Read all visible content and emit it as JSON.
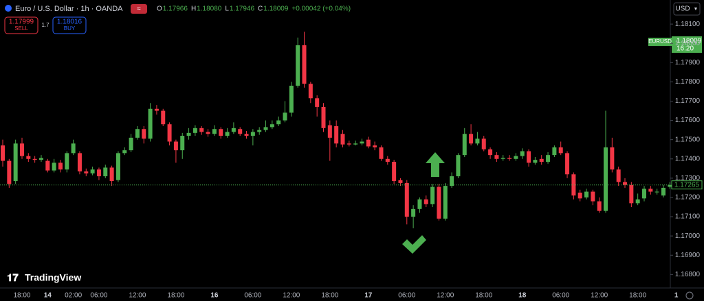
{
  "header": {
    "title": "Euro / U.S. Dollar · 1h · OANDA",
    "ohlc": [
      {
        "label": "O",
        "value": "1.17966"
      },
      {
        "label": "H",
        "value": "1.18080"
      },
      {
        "label": "L",
        "value": "1.17946"
      },
      {
        "label": "C",
        "value": "1.18009"
      }
    ],
    "change": "+0.00042 (+0.04%)"
  },
  "sell": {
    "price": "1.17999",
    "label": "SELL"
  },
  "spread": "1.7",
  "buy": {
    "price": "1.18016",
    "label": "BUY"
  },
  "currency": "USD",
  "price_tag": {
    "symbol": "EURUSD",
    "price": "1.18009",
    "countdown": "16:20"
  },
  "logo": "TradingView",
  "chart_data": {
    "type": "candlestick",
    "categories": [
      null,
      null,
      null,
      "18:00",
      null,
      null,
      null,
      "14",
      null,
      null,
      null,
      "02:00",
      null,
      null,
      null,
      "06:00",
      null,
      null,
      null,
      null,
      null,
      "12:00",
      null,
      null,
      null,
      null,
      null,
      "18:00",
      null,
      null,
      null,
      null,
      null,
      "16",
      null,
      null,
      null,
      null,
      null,
      "06:00",
      null,
      null,
      null,
      null,
      null,
      "12:00",
      null,
      null,
      null,
      null,
      null,
      "18:00",
      null,
      null,
      null,
      null,
      null,
      "17",
      null,
      null,
      null,
      null,
      null,
      "06:00",
      null,
      null,
      null,
      null,
      null,
      "12:00",
      null,
      null,
      null,
      null,
      null,
      "18:00",
      null,
      null,
      null,
      null,
      null,
      "18",
      null,
      null,
      null,
      null,
      null,
      "06:00",
      null,
      null,
      null,
      null,
      null,
      "12:00",
      null,
      null,
      null,
      null,
      null,
      "18:00",
      null,
      null,
      null,
      null,
      null,
      "1"
    ],
    "open": [
      1.1747,
      1.1739,
      1.17285,
      1.1748,
      1.17415,
      1.174,
      1.17395,
      1.1739,
      1.1734,
      1.1738,
      1.17345,
      1.1743,
      1.1743,
      1.17335,
      1.17325,
      1.17345,
      1.1731,
      1.17355,
      1.1729,
      1.1743,
      1.17445,
      1.1751,
      1.17555,
      1.17505,
      1.1766,
      1.1765,
      1.1758,
      1.1749,
      1.17445,
      1.1752,
      1.17535,
      1.1756,
      1.1754,
      1.1753,
      1.17555,
      1.1752,
      1.1754,
      1.17555,
      1.1753,
      1.1752,
      1.1754,
      1.1755,
      1.17565,
      1.1758,
      1.176,
      1.1764,
      1.1778,
      1.1799,
      1.1779,
      1.17715,
      1.1767,
      1.17575,
      1.1757,
      1.1753,
      1.1748,
      1.17475,
      1.1748,
      1.175,
      1.1747,
      1.1746,
      1.174,
      1.17385,
      1.1729,
      1.17275,
      1.171,
      1.1714,
      1.1719,
      1.17165,
      1.17255,
      1.1709,
      1.1726,
      1.1731,
      1.1742,
      1.1753,
      1.1748,
      1.17505,
      1.1745,
      1.1742,
      1.174,
      1.17405,
      1.174,
      1.17415,
      1.1744,
      1.1738,
      1.174,
      1.17385,
      1.1742,
      1.1746,
      1.1743,
      1.1732,
      1.17225,
      1.172,
      1.1723,
      1.1718,
      1.1713,
      1.1746,
      1.17345,
      1.1728,
      1.17265,
      1.1717,
      1.17195,
      1.17245,
      1.1723,
      1.1721,
      1.17255,
      null
    ],
    "high": [
      1.175,
      1.174,
      1.175,
      1.1751,
      1.1743,
      1.17415,
      1.1742,
      1.174,
      1.174,
      1.17395,
      1.1744,
      1.175,
      1.1744,
      1.1735,
      1.1736,
      1.17355,
      1.1737,
      1.17365,
      1.1744,
      1.1746,
      1.1753,
      1.1757,
      1.1757,
      1.1769,
      1.1768,
      1.1766,
      1.1759,
      1.175,
      1.17535,
      1.1756,
      1.17575,
      1.1757,
      1.17555,
      1.17575,
      1.17565,
      1.1756,
      1.1759,
      1.17565,
      1.17545,
      1.17555,
      1.17565,
      1.176,
      1.176,
      1.1762,
      1.177,
      1.178,
      1.1803,
      1.1806,
      1.178,
      1.1773,
      1.1769,
      1.176,
      1.176,
      1.1755,
      1.17495,
      1.17495,
      1.17505,
      1.17515,
      1.1749,
      1.1747,
      1.17415,
      1.17395,
      1.173,
      1.1729,
      1.1716,
      1.172,
      1.1721,
      1.1727,
      1.1727,
      1.17275,
      1.1733,
      1.1743,
      1.1756,
      1.1758,
      1.1754,
      1.1752,
      1.1746,
      1.17435,
      1.1742,
      1.1742,
      1.1743,
      1.17455,
      1.1745,
      1.1741,
      1.1742,
      1.17435,
      1.1747,
      1.1749,
      1.1744,
      1.1733,
      1.1724,
      1.17245,
      1.1724,
      1.172,
      1.1765,
      1.1751,
      1.1736,
      1.173,
      1.1728,
      1.1722,
      1.1726,
      1.1726,
      1.17245,
      1.17265,
      1.1728,
      null
    ],
    "low": [
      1.1736,
      1.1725,
      1.1727,
      1.174,
      1.17385,
      1.1738,
      1.17385,
      1.1733,
      1.1733,
      1.1733,
      1.1733,
      1.1742,
      1.1732,
      1.1731,
      1.17315,
      1.1729,
      1.173,
      1.1726,
      1.1728,
      1.1742,
      1.17435,
      1.175,
      1.1748,
      1.1749,
      1.1763,
      1.1757,
      1.1747,
      1.1738,
      1.174,
      1.175,
      1.1752,
      1.17525,
      1.17515,
      1.1752,
      1.17505,
      1.1751,
      1.1753,
      1.1752,
      1.17505,
      1.1747,
      1.17525,
      1.1754,
      1.17555,
      1.1757,
      1.1759,
      1.1762,
      1.1777,
      1.1777,
      1.1769,
      1.1762,
      1.1754,
      1.1739,
      1.1746,
      1.1746,
      1.17465,
      1.1747,
      1.1747,
      1.17455,
      1.17445,
      1.1739,
      1.1737,
      1.1727,
      1.1726,
      1.1706,
      1.1704,
      1.1712,
      1.1715,
      1.1715,
      1.1708,
      1.1708,
      1.1725,
      1.173,
      1.1741,
      1.1747,
      1.1747,
      1.1744,
      1.174,
      1.17385,
      1.1739,
      1.1739,
      1.1739,
      1.174,
      1.1736,
      1.1737,
      1.1737,
      1.17375,
      1.1741,
      1.1742,
      1.173,
      1.1719,
      1.1718,
      1.1719,
      1.1716,
      1.1712,
      1.1712,
      1.1733,
      1.1726,
      1.1725,
      1.1715,
      1.1716,
      1.1718,
      1.17215,
      1.17215,
      1.172,
      1.17245,
      null
    ],
    "close": [
      1.1739,
      1.1727,
      1.1748,
      1.17415,
      1.174,
      1.17395,
      1.17405,
      1.1734,
      1.1738,
      1.17345,
      1.1743,
      1.1748,
      1.17335,
      1.17325,
      1.17345,
      1.1731,
      1.17355,
      1.17285,
      1.1743,
      1.17445,
      1.1751,
      1.17555,
      1.17505,
      1.1766,
      1.1765,
      1.1758,
      1.1749,
      1.17445,
      1.1752,
      1.17535,
      1.1756,
      1.1754,
      1.1753,
      1.17555,
      1.1752,
      1.1754,
      1.1756,
      1.1753,
      1.1752,
      1.1754,
      1.1755,
      1.17565,
      1.1758,
      1.176,
      1.1764,
      1.1778,
      1.1799,
      1.1779,
      1.17715,
      1.1767,
      1.1756,
      1.1751,
      1.1748,
      1.17475,
      1.17475,
      1.1748,
      1.1749,
      1.17465,
      1.1746,
      1.174,
      1.17385,
      1.17285,
      1.17275,
      1.171,
      1.1714,
      1.1719,
      1.17165,
      1.17255,
      1.1709,
      1.1726,
      1.1731,
      1.1742,
      1.1753,
      1.1748,
      1.17505,
      1.1745,
      1.1742,
      1.174,
      1.17405,
      1.174,
      1.17415,
      1.1744,
      1.1738,
      1.17395,
      1.17385,
      1.1742,
      1.1746,
      1.1743,
      1.1732,
      1.1721,
      1.17195,
      1.1723,
      1.1718,
      1.1713,
      1.1746,
      1.17345,
      1.1728,
      1.17265,
      1.1717,
      1.1719,
      1.17245,
      1.1723,
      1.1723,
      1.1725,
      1.17265,
      null
    ],
    "up_color": "#4caf50",
    "down_color": "#f23645",
    "ylim": [
      1.1673,
      1.18225
    ],
    "yticks": [
      {
        "value": 1.181,
        "label": "1.18100"
      },
      {
        "value": 1.18,
        "label": "1.18000"
      },
      {
        "value": 1.179,
        "label": "1.17900"
      },
      {
        "value": 1.178,
        "label": "1.17800"
      },
      {
        "value": 1.177,
        "label": "1.17700"
      },
      {
        "value": 1.176,
        "label": "1.17600"
      },
      {
        "value": 1.175,
        "label": "1.17500"
      },
      {
        "value": 1.174,
        "label": "1.17400"
      },
      {
        "value": 1.173,
        "label": "1.17300"
      },
      {
        "value": 1.172,
        "label": "1.17200"
      },
      {
        "value": 1.171,
        "label": "1.17100"
      },
      {
        "value": 1.17,
        "label": "1.17000"
      },
      {
        "value": 1.169,
        "label": "1.16900"
      },
      {
        "value": 1.168,
        "label": "1.16800"
      }
    ]
  }
}
